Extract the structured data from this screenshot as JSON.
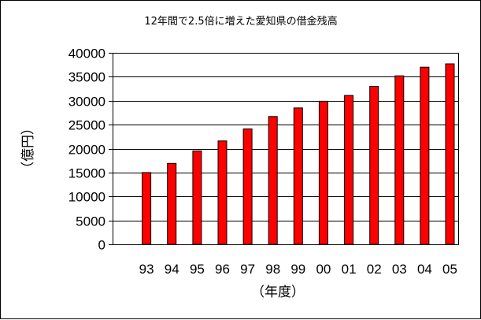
{
  "chart_data": {
    "type": "bar",
    "title": "12年間で2.5倍に増えた愛知県の借金残高",
    "xlabel": "（年度）",
    "ylabel": "（億円）",
    "categories": [
      "93",
      "94",
      "95",
      "96",
      "97",
      "98",
      "99",
      "00",
      "01",
      "02",
      "03",
      "04",
      "05"
    ],
    "values": [
      15000,
      16900,
      19500,
      21600,
      24100,
      26700,
      28500,
      29900,
      31100,
      33000,
      35200,
      37000,
      37700
    ],
    "ylim": [
      0,
      40000
    ],
    "yticks": [
      0,
      5000,
      10000,
      15000,
      20000,
      25000,
      30000,
      35000,
      40000
    ],
    "ytick_labels": [
      "0",
      "5000",
      "10000",
      "15000",
      "20000",
      "25000",
      "30000",
      "35000",
      "40000"
    ],
    "grid": true,
    "legend": "none",
    "colors": {
      "bar": "#ff0000",
      "bar_edge": "#000000",
      "grid": "#000000",
      "axis": "#000000"
    }
  }
}
